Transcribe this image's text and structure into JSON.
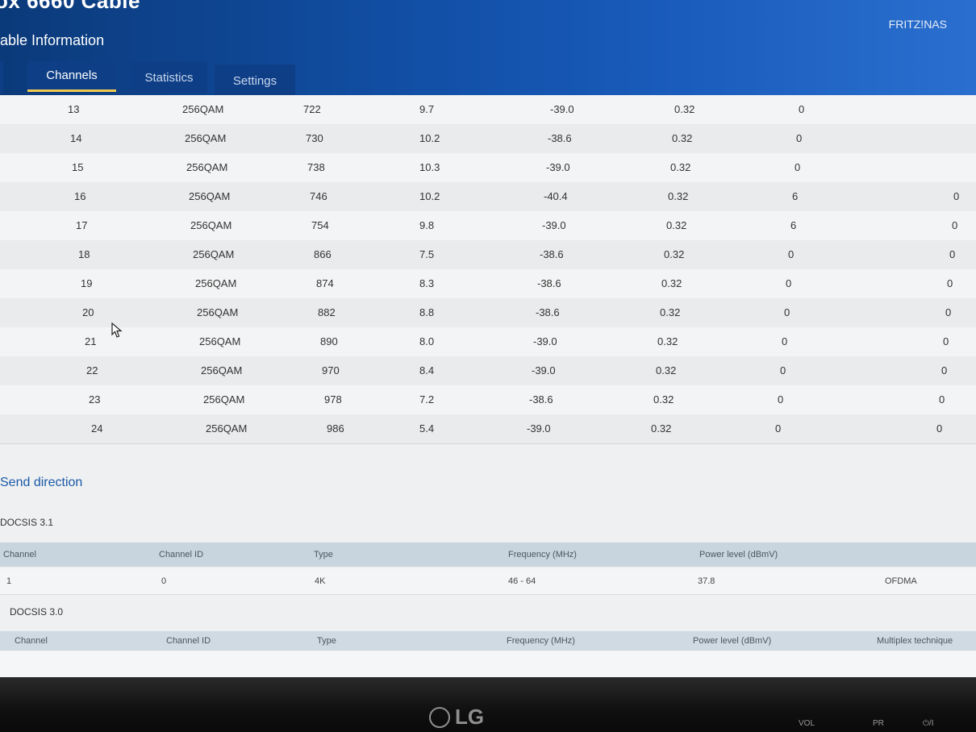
{
  "header": {
    "product_title": "ox 6660 Cable",
    "subtitle": "able Information",
    "brand": "FRITZ!NAS",
    "accent_color": "#1250a8"
  },
  "tabs": [
    {
      "label": "Channels",
      "active": true
    },
    {
      "label": "Statistics",
      "active": false
    },
    {
      "label": "Settings",
      "active": false
    }
  ],
  "downstream": {
    "rows": [
      {
        "channel": "13",
        "type": "256QAM",
        "frequency": "722",
        "mer": "9.7",
        "power": "-39.0",
        "latency": "0.32",
        "corrected": "0",
        "uncorrectable": ""
      },
      {
        "channel": "14",
        "type": "256QAM",
        "frequency": "730",
        "mer": "10.2",
        "power": "-38.6",
        "latency": "0.32",
        "corrected": "0",
        "uncorrectable": ""
      },
      {
        "channel": "15",
        "type": "256QAM",
        "frequency": "738",
        "mer": "10.3",
        "power": "-39.0",
        "latency": "0.32",
        "corrected": "0",
        "uncorrectable": ""
      },
      {
        "channel": "16",
        "type": "256QAM",
        "frequency": "746",
        "mer": "10.2",
        "power": "-40.4",
        "latency": "0.32",
        "corrected": "6",
        "uncorrectable": "0"
      },
      {
        "channel": "17",
        "type": "256QAM",
        "frequency": "754",
        "mer": "9.8",
        "power": "-39.0",
        "latency": "0.32",
        "corrected": "6",
        "uncorrectable": "0"
      },
      {
        "channel": "18",
        "type": "256QAM",
        "frequency": "866",
        "mer": "7.5",
        "power": "-38.6",
        "latency": "0.32",
        "corrected": "0",
        "uncorrectable": "0"
      },
      {
        "channel": "19",
        "type": "256QAM",
        "frequency": "874",
        "mer": "8.3",
        "power": "-38.6",
        "latency": "0.32",
        "corrected": "0",
        "uncorrectable": "0"
      },
      {
        "channel": "20",
        "type": "256QAM",
        "frequency": "882",
        "mer": "8.8",
        "power": "-38.6",
        "latency": "0.32",
        "corrected": "0",
        "uncorrectable": "0"
      },
      {
        "channel": "21",
        "type": "256QAM",
        "frequency": "890",
        "mer": "8.0",
        "power": "-39.0",
        "latency": "0.32",
        "corrected": "0",
        "uncorrectable": "0"
      },
      {
        "channel": "22",
        "type": "256QAM",
        "frequency": "970",
        "mer": "8.4",
        "power": "-39.0",
        "latency": "0.32",
        "corrected": "0",
        "uncorrectable": "0"
      },
      {
        "channel": "23",
        "type": "256QAM",
        "frequency": "978",
        "mer": "7.2",
        "power": "-38.6",
        "latency": "0.32",
        "corrected": "0",
        "uncorrectable": "0"
      },
      {
        "channel": "24",
        "type": "256QAM",
        "frequency": "986",
        "mer": "5.4",
        "power": "-39.0",
        "latency": "0.32",
        "corrected": "0",
        "uncorrectable": "0"
      }
    ]
  },
  "send_direction": {
    "heading": "Send direction",
    "docsis31": {
      "heading": "DOCSIS 3.1",
      "columns": [
        "Channel",
        "Channel ID",
        "Type",
        "Frequency (MHz)",
        "Power level (dBmV)"
      ],
      "row": {
        "channel": "1",
        "channel_id": "0",
        "type": "4K",
        "frequency": "46 - 64",
        "power": "37.8",
        "multiplex": "OFDMA"
      }
    },
    "docsis30": {
      "heading": "DOCSIS 3.0",
      "columns": [
        "Channel",
        "Channel ID",
        "Type",
        "Frequency (MHz)",
        "Power level (dBmV)",
        "Multiplex technique"
      ]
    }
  },
  "monitor": {
    "logo": "LG",
    "buttons": [
      "VOL",
      "PR",
      "⏻/I"
    ]
  }
}
